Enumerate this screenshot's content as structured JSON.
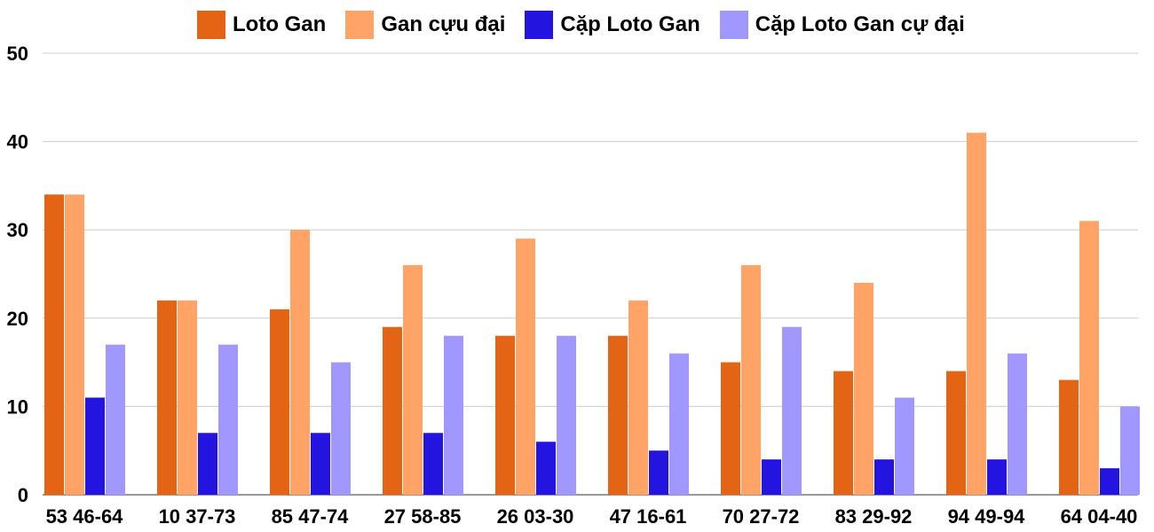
{
  "chart_data": {
    "type": "bar",
    "title": "",
    "xlabel": "",
    "ylabel": "",
    "ylim": [
      0,
      50
    ],
    "yticks": [
      0,
      10,
      20,
      30,
      40,
      50
    ],
    "grid": true,
    "legend_position": "top",
    "categories": [
      "53 46-64",
      "10 37-73",
      "85 47-74",
      "27 58-85",
      "26 03-30",
      "47 16-61",
      "70 27-72",
      "83 29-92",
      "94 49-94",
      "64 04-40"
    ],
    "series": [
      {
        "name": "Loto Gan",
        "color": "#E36414",
        "values": [
          34,
          22,
          21,
          19,
          18,
          18,
          15,
          14,
          14,
          13
        ]
      },
      {
        "name": "Gan cựu đại",
        "color": "#FFA466",
        "values": [
          34,
          22,
          30,
          26,
          29,
          22,
          26,
          24,
          41,
          31
        ]
      },
      {
        "name": "Cặp Loto Gan",
        "color": "#2414E0",
        "values": [
          11,
          7,
          7,
          7,
          6,
          5,
          4,
          4,
          4,
          3
        ]
      },
      {
        "name": "Cặp Loto Gan cự đại",
        "color": "#A198FF",
        "values": [
          17,
          17,
          15,
          18,
          18,
          16,
          19,
          11,
          16,
          10
        ]
      }
    ]
  }
}
